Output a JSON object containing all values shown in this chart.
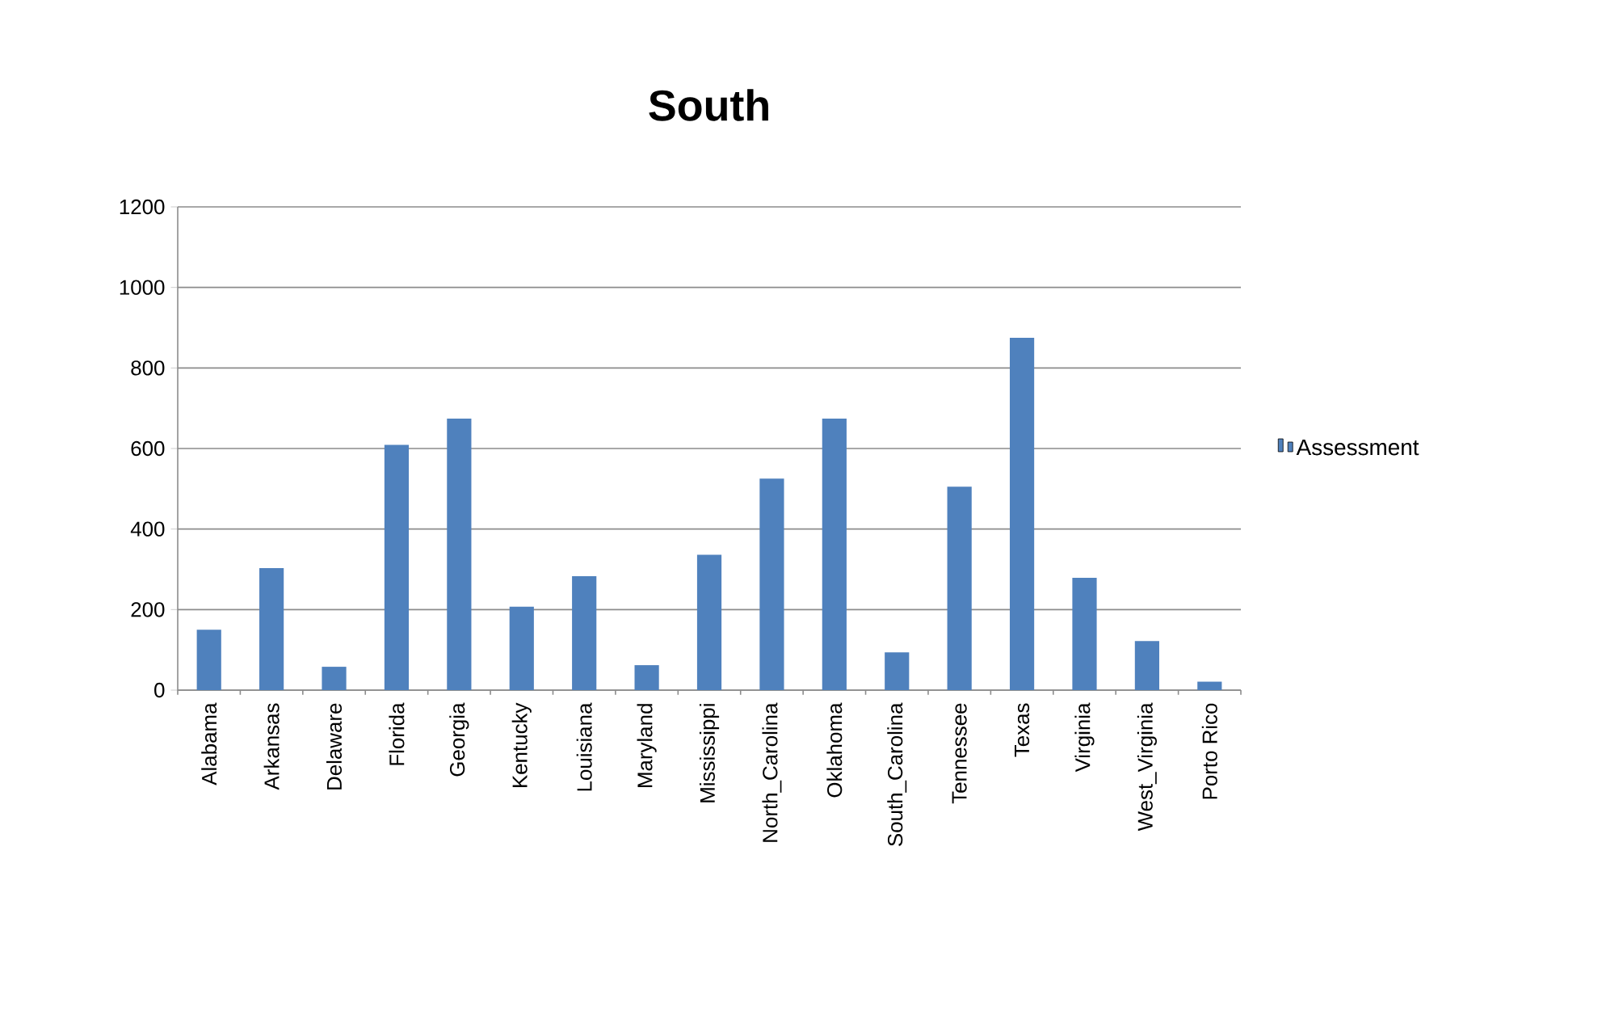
{
  "chart_data": {
    "type": "bar",
    "title": "South",
    "categories": [
      "Alabama",
      "Arkansas",
      "Delaware",
      "Florida",
      "Georgia",
      "Kentucky",
      "Louisiana",
      "Maryland",
      "Mississippi",
      "North_Carolina",
      "Oklahoma",
      "South_Carolina",
      "Tennessee",
      "Texas",
      "Virginia",
      "West_Virginia",
      "Porto Rico"
    ],
    "series": [
      {
        "name": "Assessment",
        "color": "#4f81bd",
        "values": [
          150,
          303,
          58,
          609,
          674,
          207,
          283,
          62,
          336,
          525,
          674,
          94,
          505,
          875,
          279,
          122,
          21
        ]
      }
    ],
    "ylim": [
      0,
      1200
    ],
    "yticks": [
      0,
      200,
      400,
      600,
      800,
      1000,
      1200
    ],
    "grid": "y",
    "legend": "right"
  }
}
